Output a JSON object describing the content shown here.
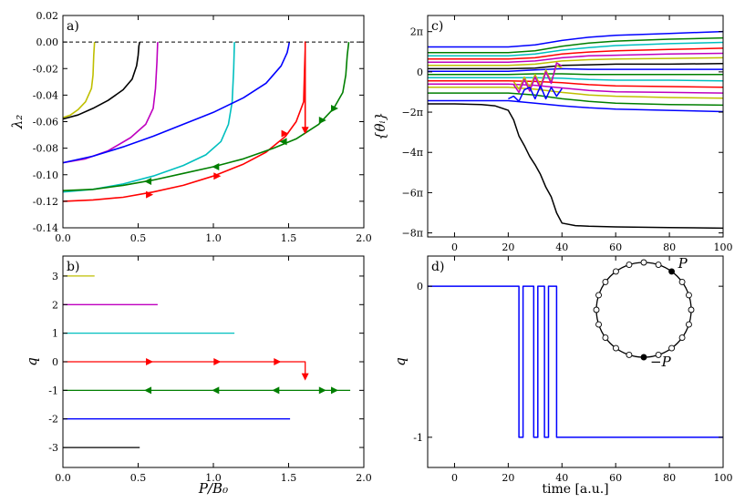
{
  "colors": {
    "axis": "#000000",
    "dashed_zero": "#000000",
    "q3": "#bfbf00",
    "q2": "#bf00bf",
    "q1": "#00bfbf",
    "q0": "#ff0000",
    "qm1": "#007f00",
    "qm2": "#0000ff",
    "qm3": "#000000"
  },
  "chart_data": [
    {
      "panel": "a",
      "panel_label": "a)",
      "type": "line",
      "ylabel": "λ₂",
      "xlim": [
        0.0,
        2.0
      ],
      "ylim": [
        -0.14,
        0.02
      ],
      "xticks": [
        "0.0",
        "0.5",
        "1.0",
        "1.5",
        "2.0"
      ],
      "yticks": [
        "0.02",
        "0.00",
        "-0.02",
        "-0.04",
        "-0.06",
        "-0.08",
        "-0.10",
        "-0.12",
        "-0.14"
      ],
      "dashed_reference_y": 0.0,
      "series": [
        {
          "key": "q3",
          "x": [
            0.0,
            0.05,
            0.1,
            0.15,
            0.19,
            0.2,
            0.205,
            0.21
          ],
          "y": [
            -0.057,
            -0.055,
            -0.051,
            -0.045,
            -0.035,
            -0.025,
            -0.01,
            0.0
          ]
        },
        {
          "key": "qm3",
          "x": [
            0.0,
            0.1,
            0.2,
            0.3,
            0.4,
            0.46,
            0.49,
            0.5,
            0.505,
            0.51
          ],
          "y": [
            -0.058,
            -0.055,
            -0.05,
            -0.044,
            -0.036,
            -0.028,
            -0.018,
            -0.01,
            -0.003,
            0.0
          ]
        },
        {
          "key": "q2",
          "x": [
            0.0,
            0.15,
            0.3,
            0.45,
            0.55,
            0.6,
            0.615,
            0.625,
            0.63
          ],
          "y": [
            -0.091,
            -0.088,
            -0.082,
            -0.072,
            -0.062,
            -0.05,
            -0.035,
            -0.015,
            0.0
          ]
        },
        {
          "key": "q1",
          "x": [
            0.0,
            0.2,
            0.4,
            0.6,
            0.8,
            0.95,
            1.05,
            1.1,
            1.125,
            1.135,
            1.14
          ],
          "y": [
            -0.113,
            -0.111,
            -0.107,
            -0.101,
            -0.093,
            -0.085,
            -0.075,
            -0.062,
            -0.045,
            -0.02,
            0.0
          ]
        },
        {
          "key": "qm2",
          "x": [
            0.0,
            0.2,
            0.4,
            0.6,
            0.8,
            1.0,
            1.2,
            1.35,
            1.45,
            1.49,
            1.5,
            1.505
          ],
          "y": [
            -0.091,
            -0.086,
            -0.079,
            -0.071,
            -0.062,
            -0.053,
            -0.042,
            -0.031,
            -0.018,
            -0.008,
            -0.003,
            0.0
          ]
        },
        {
          "key": "q0",
          "x": [
            0.0,
            0.2,
            0.4,
            0.6,
            0.8,
            1.0,
            1.2,
            1.35,
            1.48,
            1.55,
            1.6,
            1.605,
            1.61,
            1.61,
            1.61
          ],
          "y": [
            -0.12,
            -0.119,
            -0.117,
            -0.113,
            -0.108,
            -0.101,
            -0.092,
            -0.083,
            -0.071,
            -0.06,
            -0.045,
            -0.025,
            -0.005,
            0.0,
            -0.067
          ]
        },
        {
          "key": "qm1",
          "x": [
            0.0,
            0.2,
            0.4,
            0.6,
            0.8,
            1.0,
            1.2,
            1.4,
            1.55,
            1.7,
            1.8,
            1.86,
            1.88,
            1.89,
            1.9
          ],
          "y": [
            -0.112,
            -0.111,
            -0.108,
            -0.104,
            -0.099,
            -0.094,
            -0.088,
            -0.08,
            -0.073,
            -0.062,
            -0.05,
            -0.038,
            -0.025,
            -0.01,
            0.0
          ]
        }
      ],
      "arrows": [
        {
          "key": "q0",
          "x": 0.57,
          "y": -0.115,
          "dir": "right"
        },
        {
          "key": "q0",
          "x": 1.02,
          "y": -0.101,
          "dir": "right"
        },
        {
          "key": "q0",
          "x": 1.47,
          "y": -0.069,
          "dir": "right"
        },
        {
          "key": "q0",
          "x": 1.61,
          "y": -0.066,
          "dir": "down"
        },
        {
          "key": "qm1",
          "x": 0.57,
          "y": -0.105,
          "dir": "left"
        },
        {
          "key": "qm1",
          "x": 1.02,
          "y": -0.094,
          "dir": "left"
        },
        {
          "key": "qm1",
          "x": 1.47,
          "y": -0.075,
          "dir": "left"
        },
        {
          "key": "qm1",
          "x": 1.72,
          "y": -0.059,
          "dir": "right"
        },
        {
          "key": "qm1",
          "x": 1.8,
          "y": -0.05,
          "dir": "right"
        }
      ]
    },
    {
      "panel": "b",
      "panel_label": "b)",
      "type": "line",
      "ylabel": "q",
      "xlabel": "P/B₀",
      "xlim": [
        0.0,
        2.0
      ],
      "ylim": [
        -3.7,
        3.7
      ],
      "xticks": [
        "0.0",
        "0.5",
        "1.0",
        "1.5",
        "2.0"
      ],
      "yticks": [
        "3",
        "2",
        "1",
        "0",
        "-1",
        "-2",
        "-3"
      ],
      "series": [
        {
          "key": "q3",
          "x": [
            0.0,
            0.21
          ],
          "y": [
            3,
            3
          ]
        },
        {
          "key": "q2",
          "x": [
            0.0,
            0.63
          ],
          "y": [
            2,
            2
          ]
        },
        {
          "key": "q1",
          "x": [
            0.0,
            1.14
          ],
          "y": [
            1,
            1
          ]
        },
        {
          "key": "q0",
          "x": [
            0.0,
            1.61,
            1.61
          ],
          "y": [
            0,
            0,
            -0.55
          ]
        },
        {
          "key": "qm1",
          "x": [
            0.0,
            1.91
          ],
          "y": [
            -1,
            -1
          ]
        },
        {
          "key": "qm2",
          "x": [
            0.0,
            1.51
          ],
          "y": [
            -2,
            -2
          ]
        },
        {
          "key": "qm3",
          "x": [
            0.0,
            0.51
          ],
          "y": [
            -3,
            -3
          ]
        }
      ],
      "arrows": [
        {
          "key": "q0",
          "x": 0.57,
          "y": 0,
          "dir": "right"
        },
        {
          "key": "q0",
          "x": 1.02,
          "y": 0,
          "dir": "right"
        },
        {
          "key": "q0",
          "x": 1.42,
          "y": 0,
          "dir": "right"
        },
        {
          "key": "q0",
          "x": 1.61,
          "y": -0.5,
          "dir": "down"
        },
        {
          "key": "qm1",
          "x": 0.57,
          "y": -1,
          "dir": "left"
        },
        {
          "key": "qm1",
          "x": 1.02,
          "y": -1,
          "dir": "left"
        },
        {
          "key": "qm1",
          "x": 1.42,
          "y": -1,
          "dir": "left"
        },
        {
          "key": "qm1",
          "x": 1.72,
          "y": -1,
          "dir": "right"
        },
        {
          "key": "qm1",
          "x": 1.8,
          "y": -1,
          "dir": "right"
        }
      ]
    },
    {
      "panel": "c",
      "panel_label": "c)",
      "type": "line",
      "ylabel": "{θᵢ}",
      "xlim": [
        -10,
        100
      ],
      "ylim": [
        -25.76,
        8.8
      ],
      "xticks": [
        "0",
        "20",
        "40",
        "60",
        "80",
        "100"
      ],
      "yticks": [
        "2π",
        "0",
        "−2π",
        "−4π",
        "−6π",
        "−8π"
      ],
      "series": [
        {
          "color": "#0000ff",
          "x": [
            -10,
            0,
            20,
            30,
            40,
            50,
            60,
            80,
            100
          ],
          "y": [
            3.9,
            3.9,
            3.9,
            4.2,
            4.9,
            5.4,
            5.7,
            6.0,
            6.3
          ]
        },
        {
          "color": "#007f00",
          "x": [
            -10,
            0,
            20,
            30,
            40,
            50,
            60,
            80,
            100
          ],
          "y": [
            3.0,
            3.0,
            3.0,
            3.3,
            4.0,
            4.5,
            4.8,
            5.1,
            5.3
          ]
        },
        {
          "color": "#00bfbf",
          "x": [
            -10,
            0,
            20,
            30,
            40,
            50,
            60,
            80,
            100
          ],
          "y": [
            2.5,
            2.5,
            2.5,
            2.8,
            3.4,
            3.8,
            4.1,
            4.4,
            4.6
          ]
        },
        {
          "color": "#ff0000",
          "x": [
            -10,
            0,
            20,
            30,
            40,
            50,
            60,
            80,
            100
          ],
          "y": [
            2.0,
            2.0,
            2.0,
            2.2,
            2.8,
            3.1,
            3.3,
            3.5,
            3.7
          ]
        },
        {
          "color": "#bf00bf",
          "x": [
            -10,
            0,
            20,
            30,
            40,
            50,
            60,
            80,
            100
          ],
          "y": [
            1.5,
            1.5,
            1.5,
            1.7,
            2.2,
            2.5,
            2.6,
            2.8,
            2.9
          ]
        },
        {
          "color": "#bfbf00",
          "x": [
            -10,
            0,
            20,
            30,
            40,
            50,
            60,
            80,
            100
          ],
          "y": [
            1.0,
            1.0,
            1.0,
            1.2,
            1.7,
            1.9,
            2.0,
            2.1,
            2.2
          ]
        },
        {
          "color": "#000000",
          "x": [
            -10,
            0,
            20,
            30,
            40,
            50,
            60,
            80,
            100
          ],
          "y": [
            0.5,
            0.5,
            0.5,
            0.6,
            1.0,
            1.1,
            1.2,
            1.2,
            1.3
          ]
        },
        {
          "color": "#0000ff",
          "x": [
            -10,
            0,
            20,
            30,
            40,
            50,
            60,
            80,
            100
          ],
          "y": [
            0.1,
            0.1,
            0.1,
            0.3,
            0.5,
            0.4,
            0.4,
            0.4,
            0.4
          ]
        },
        {
          "color": "#007f00",
          "x": [
            -10,
            0,
            20,
            30,
            40,
            50,
            60,
            80,
            100
          ],
          "y": [
            -0.4,
            -0.4,
            -0.4,
            -0.3,
            -0.3,
            -0.4,
            -0.4,
            -0.4,
            -0.4
          ]
        },
        {
          "color": "#00bfbf",
          "x": [
            -10,
            0,
            20,
            30,
            40,
            50,
            60,
            80,
            100
          ],
          "y": [
            -0.9,
            -0.9,
            -0.9,
            -0.9,
            -1.0,
            -1.2,
            -1.3,
            -1.3,
            -1.4
          ]
        },
        {
          "color": "#ff0000",
          "x": [
            -10,
            0,
            20,
            30,
            40,
            50,
            60,
            80,
            100
          ],
          "y": [
            -1.4,
            -1.4,
            -1.4,
            -1.5,
            -1.7,
            -2.0,
            -2.2,
            -2.3,
            -2.4
          ]
        },
        {
          "color": "#bf00bf",
          "x": [
            -10,
            0,
            20,
            30,
            40,
            50,
            60,
            80,
            100
          ],
          "y": [
            -1.9,
            -1.9,
            -1.9,
            -2.1,
            -2.5,
            -2.9,
            -3.1,
            -3.2,
            -3.3
          ]
        },
        {
          "color": "#bfbf00",
          "x": [
            -10,
            0,
            20,
            30,
            40,
            50,
            60,
            80,
            100
          ],
          "y": [
            -2.4,
            -2.4,
            -2.4,
            -2.7,
            -3.2,
            -3.6,
            -3.8,
            -4.0,
            -4.1
          ]
        },
        {
          "color": "#007f00",
          "x": [
            -10,
            0,
            20,
            30,
            40,
            50,
            60,
            80,
            100
          ],
          "y": [
            -3.3,
            -3.3,
            -3.3,
            -3.6,
            -4.2,
            -4.6,
            -4.9,
            -5.1,
            -5.2
          ]
        },
        {
          "color": "#0000ff",
          "x": [
            -10,
            0,
            20,
            30,
            40,
            50,
            60,
            80,
            100
          ],
          "y": [
            -4.5,
            -4.5,
            -4.5,
            -4.9,
            -5.3,
            -5.6,
            -5.8,
            -6.0,
            -6.2
          ]
        },
        {
          "color": "#bfbf00",
          "x": [
            22,
            24,
            26,
            28,
            30,
            32,
            34,
            36,
            38,
            40
          ],
          "y": [
            -1.5,
            -2.7,
            -0.8,
            -2.5,
            -0.4,
            -2.2,
            0.3,
            -1.5,
            1.0,
            0.6
          ]
        },
        {
          "color": "#bf00bf",
          "x": [
            22,
            24,
            26,
            28,
            30,
            32,
            34,
            36,
            38,
            40
          ],
          "y": [
            -2.0,
            -3.2,
            -1.2,
            -3.0,
            -0.8,
            -2.6,
            0.0,
            -1.8,
            1.4,
            0.9
          ]
        },
        {
          "color": "#0000ff",
          "x": [
            20,
            22,
            24,
            26,
            28,
            30,
            32,
            34,
            36,
            38,
            40
          ],
          "y": [
            -4.2,
            -3.8,
            -4.6,
            -2.8,
            -2.4,
            -4.2,
            -2.2,
            -4.2,
            -2.4,
            -3.8,
            -2.6
          ]
        },
        {
          "color": "#000000",
          "x": [
            -10,
            0,
            10,
            15,
            20,
            22,
            24,
            26,
            28,
            30,
            32,
            34,
            36,
            38,
            40,
            45,
            50,
            60,
            80,
            100
          ],
          "y": [
            -5.0,
            -5.0,
            -5.1,
            -5.3,
            -6.0,
            -7.5,
            -10.0,
            -11.5,
            -13.2,
            -14.5,
            -16.0,
            -18.0,
            -19.5,
            -22.0,
            -23.6,
            -24.0,
            -24.1,
            -24.2,
            -24.3,
            -24.4
          ]
        }
      ]
    },
    {
      "panel": "d",
      "panel_label": "d)",
      "type": "line",
      "ylabel": "q",
      "xlabel": "time [a.u.]",
      "xlim": [
        -10,
        100
      ],
      "ylim": [
        -1.2,
        0.2
      ],
      "xticks": [
        "0",
        "20",
        "40",
        "60",
        "80",
        "100"
      ],
      "yticks": [
        "0",
        "-1"
      ],
      "series": [
        {
          "color": "#0000ff",
          "x": [
            -10,
            24,
            24,
            25.5,
            25.5,
            29.5,
            29.5,
            31,
            31,
            33.5,
            33.5,
            35,
            35,
            38,
            38,
            39,
            39,
            100
          ],
          "y": [
            0,
            0,
            -1,
            -1,
            0,
            0,
            -1,
            -1,
            0,
            0,
            -1,
            -1,
            0,
            0,
            -1,
            -1,
            -1,
            -1
          ]
        }
      ],
      "inset": {
        "type": "ring",
        "node_count": 20,
        "filled_nodes": [
          {
            "index": 2,
            "label": "P"
          },
          {
            "index": 10,
            "label": "−P"
          }
        ]
      }
    }
  ]
}
